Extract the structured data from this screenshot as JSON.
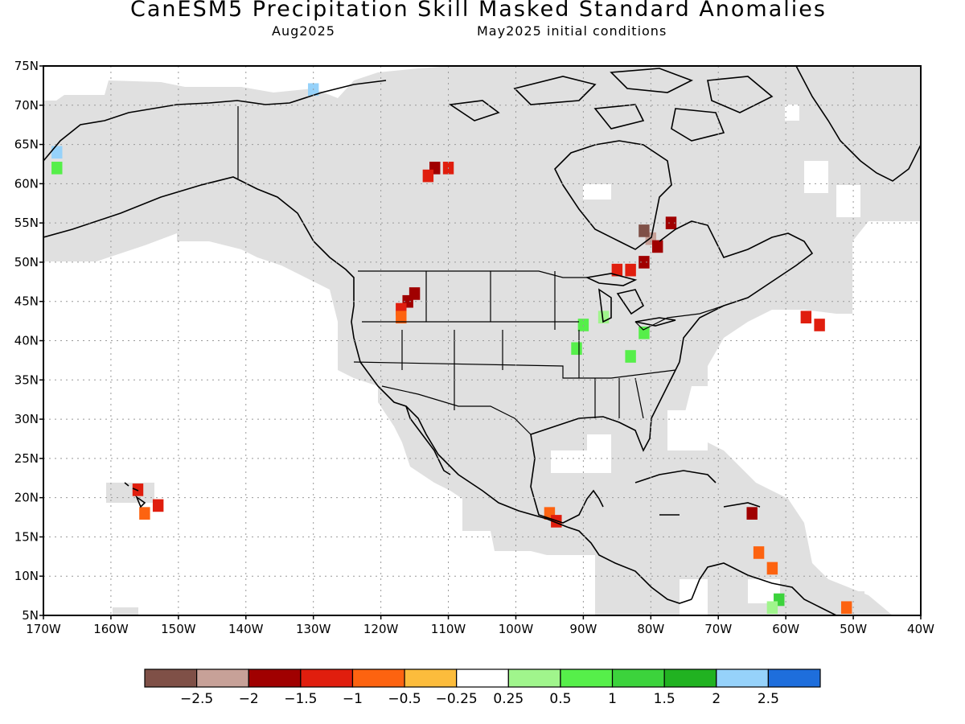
{
  "title": "CanESM5 Precipitation Skill Masked Standard Anomalies",
  "subtitle_left": "Aug2025",
  "subtitle_right": "May2025 initial conditions",
  "map": {
    "lon_range": [
      -170,
      -40
    ],
    "lat_range": [
      5,
      75
    ],
    "x_ticks": [
      "170W",
      "160W",
      "150W",
      "140W",
      "130W",
      "120W",
      "110W",
      "100W",
      "90W",
      "80W",
      "70W",
      "60W",
      "50W",
      "40W"
    ],
    "y_ticks": [
      "75N",
      "70N",
      "65N",
      "60N",
      "55N",
      "50N",
      "45N",
      "40N",
      "35N",
      "30N",
      "25N",
      "20N",
      "15N",
      "10N",
      "5N"
    ],
    "grid": "dotted",
    "mask_color": "#e0e0e0",
    "anomaly_cells": [
      {
        "lon": -116,
        "lat": 45,
        "cat": "m1.5"
      },
      {
        "lon": -115,
        "lat": 46,
        "cat": "m1.5"
      },
      {
        "lon": -117,
        "lat": 44,
        "cat": "m1"
      },
      {
        "lon": -117,
        "lat": 43,
        "cat": "m0.5"
      },
      {
        "lon": -112,
        "lat": 62,
        "cat": "m1.5"
      },
      {
        "lon": -113,
        "lat": 61,
        "cat": "m1"
      },
      {
        "lon": -110,
        "lat": 62,
        "cat": "m1"
      },
      {
        "lon": -85,
        "lat": 49,
        "cat": "m1"
      },
      {
        "lon": -83,
        "lat": 49,
        "cat": "m1"
      },
      {
        "lon": -81,
        "lat": 50,
        "cat": "m1.5"
      },
      {
        "lon": -80,
        "lat": 53,
        "cat": "m2"
      },
      {
        "lon": -79,
        "lat": 52,
        "cat": "m1.5"
      },
      {
        "lon": -81,
        "lat": 54,
        "cat": "m2.5"
      },
      {
        "lon": -77,
        "lat": 55,
        "cat": "m1.5"
      },
      {
        "lon": -156,
        "lat": 21,
        "cat": "m1"
      },
      {
        "lon": -153,
        "lat": 19,
        "cat": "m1"
      },
      {
        "lon": -155,
        "lat": 18,
        "cat": "m0.5"
      },
      {
        "lon": -95,
        "lat": 18,
        "cat": "m0.5"
      },
      {
        "lon": -94,
        "lat": 17,
        "cat": "m1"
      },
      {
        "lon": -64,
        "lat": 13,
        "cat": "m0.5"
      },
      {
        "lon": -62,
        "lat": 11,
        "cat": "m0.5"
      },
      {
        "lon": -65,
        "lat": 18,
        "cat": "m1.5"
      },
      {
        "lon": -51,
        "lat": 6,
        "cat": "m0.5"
      },
      {
        "lon": -55,
        "lat": 42,
        "cat": "m1"
      },
      {
        "lon": -57,
        "lat": 43,
        "cat": "m1"
      },
      {
        "lon": -90,
        "lat": 42,
        "cat": "p0.5"
      },
      {
        "lon": -91,
        "lat": 39,
        "cat": "p0.5"
      },
      {
        "lon": -81,
        "lat": 41,
        "cat": "p0.5"
      },
      {
        "lon": -83,
        "lat": 38,
        "cat": "p0.5"
      },
      {
        "lon": -87,
        "lat": 43,
        "cat": "p0.25"
      },
      {
        "lon": -61,
        "lat": 7,
        "cat": "p1"
      },
      {
        "lon": -62,
        "lat": 6,
        "cat": "p0.25"
      },
      {
        "lon": -168,
        "lat": 64,
        "cat": "p2"
      },
      {
        "lon": -168,
        "lat": 62,
        "cat": "p0.5"
      },
      {
        "lon": -130,
        "lat": 72,
        "cat": "p2"
      }
    ]
  },
  "colorbar": {
    "colors": [
      "#7f5047",
      "#c7a198",
      "#a00000",
      "#e01e0e",
      "#fd6310",
      "#fcbc3c",
      "#ffffff",
      "#a0f58c",
      "#56ef4a",
      "#3cd33c",
      "#21b221",
      "#96d2fa",
      "#1e6edc"
    ],
    "labels": [
      "-2.5",
      "-2",
      "-1.5",
      "-1",
      "-0.5",
      "-0.25",
      "0.25",
      "0.5",
      "1",
      "1.5",
      "2",
      "2.5"
    ]
  }
}
